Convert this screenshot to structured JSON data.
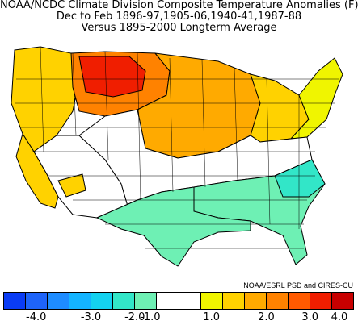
{
  "title": {
    "line1": "NOAA/NCDC Climate Division Composite Temperature Anomalies (F)",
    "line2": "Dec to Feb  1896-97,1905-06,1940-41,1987-88",
    "line3": "Versus 1895-2000 Longterm Average"
  },
  "credit": "NOAA/ESRL PSD and CIRES-CU",
  "legend": {
    "colors": [
      "#0a3cf5",
      "#1e64fa",
      "#1e8cff",
      "#14b4ff",
      "#14d2f0",
      "#32e6c8",
      "#6ef0b4",
      "#ffffff",
      "#ffffff",
      "#f0f500",
      "#ffd200",
      "#ffaa00",
      "#ff8200",
      "#ff5a00",
      "#f01e00",
      "#c80000"
    ],
    "ticks": [
      "-4.0",
      "-3.0",
      "-2.0",
      "-1.0",
      "1.0",
      "2.0",
      "3.0",
      "4.0"
    ]
  },
  "map": {
    "outline_color": "#000000",
    "region_colors": {
      "northwest_coast": "#ffd200",
      "north_rockies": "#ff8200",
      "montana_core": "#f01e00",
      "northern_plains": "#ffaa00",
      "great_lakes": "#ffd200",
      "northeast": "#f0f500",
      "central_white": "#ffffff",
      "southeast": "#6ef0b4",
      "texas_gulf": "#6ef0b4",
      "southwest": "#ffffff",
      "california": "#ffd200",
      "light_cold": "#32e6c8",
      "utah_cold": "#14b4ff"
    }
  }
}
